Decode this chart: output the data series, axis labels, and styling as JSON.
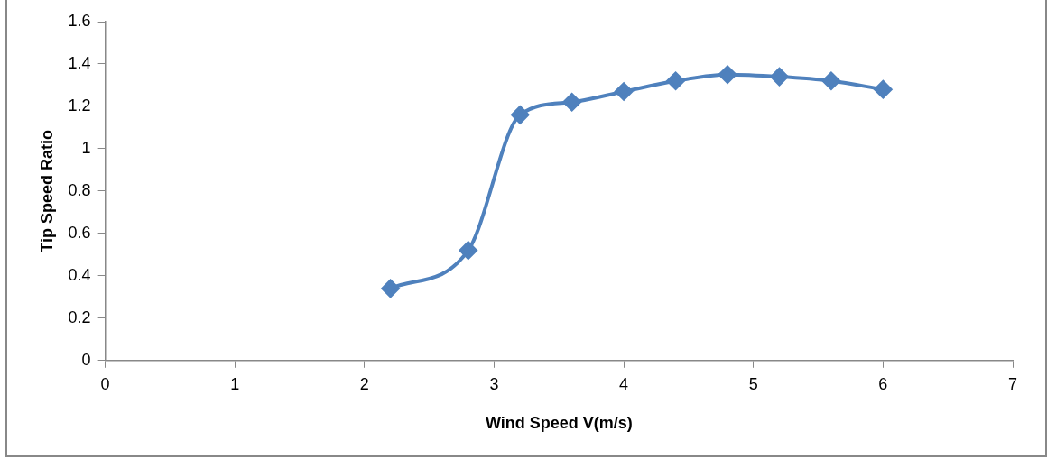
{
  "chart_data": {
    "type": "line",
    "xlabel": "Wind Speed V(m/s)",
    "ylabel": "Tip Speed Ratio",
    "x": [
      2.2,
      2.8,
      3.2,
      3.6,
      4.0,
      4.4,
      4.8,
      5.2,
      5.6,
      6.0
    ],
    "series": [
      {
        "color": "#4f81bd",
        "values": [
          0.34,
          0.52,
          1.16,
          1.22,
          1.27,
          1.32,
          1.35,
          1.34,
          1.32,
          1.28
        ]
      }
    ],
    "xlim": [
      0,
      7
    ],
    "xticks": [
      0,
      1,
      2,
      3,
      4,
      5,
      6,
      7
    ],
    "ylim": [
      0,
      1.6
    ],
    "yticks": [
      0,
      0.2,
      0.4,
      0.6,
      0.8,
      1,
      1.2,
      1.4,
      1.6
    ],
    "grid": false,
    "marker": "diamond",
    "line_style": "solid"
  }
}
